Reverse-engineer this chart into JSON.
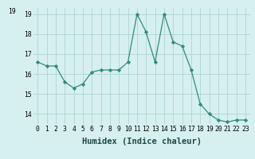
{
  "x": [
    0,
    1,
    2,
    3,
    4,
    5,
    6,
    7,
    8,
    9,
    10,
    11,
    12,
    13,
    14,
    15,
    16,
    17,
    18,
    19,
    20,
    21,
    22,
    23
  ],
  "y": [
    16.6,
    16.4,
    16.4,
    15.6,
    15.3,
    15.5,
    16.1,
    16.2,
    16.2,
    16.2,
    16.6,
    19.0,
    18.1,
    16.6,
    19.0,
    17.6,
    17.4,
    16.2,
    14.5,
    14.0,
    13.7,
    13.6,
    13.7,
    13.7
  ],
  "line_color": "#2d8c7a",
  "marker": "D",
  "marker_size": 2.2,
  "bg_color": "#d6f0ef",
  "grid_color": "#aed4d0",
  "xlabel": "Humidex (Indice chaleur)",
  "ylim": [
    13.5,
    19.3
  ],
  "yticks": [
    14,
    15,
    16,
    17,
    18,
    19
  ],
  "xticks": [
    0,
    1,
    2,
    3,
    4,
    5,
    6,
    7,
    8,
    9,
    10,
    11,
    12,
    13,
    14,
    15,
    16,
    17,
    18,
    19,
    20,
    21,
    22,
    23
  ],
  "tick_fontsize": 5.8,
  "xlabel_fontsize": 7.5,
  "top_label": "19"
}
